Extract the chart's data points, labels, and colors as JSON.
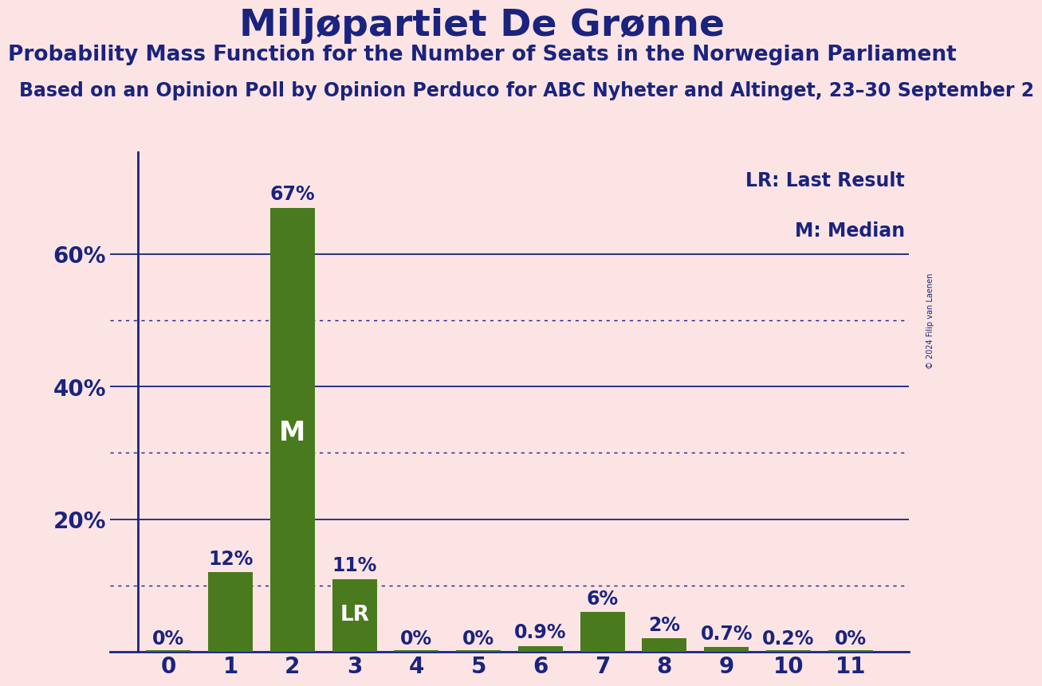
{
  "title": "Miljøpartiet De Grønne",
  "subtitle": "Probability Mass Function for the Number of Seats in the Norwegian Parliament",
  "subtitle2": "Based on an Opinion Poll by Opinion Perduco for ABC Nyheter and Altinget, 23–30 September 2",
  "copyright": "© 2024 Filip van Laenen",
  "categories": [
    0,
    1,
    2,
    3,
    4,
    5,
    6,
    7,
    8,
    9,
    10,
    11
  ],
  "values": [
    0.002,
    0.12,
    0.67,
    0.11,
    0.002,
    0.002,
    0.009,
    0.06,
    0.02,
    0.007,
    0.002,
    0.002
  ],
  "labels": [
    "0%",
    "12%",
    "67%",
    "11%",
    "0%",
    "0%",
    "0.9%",
    "6%",
    "2%",
    "0.7%",
    "0.2%",
    "0%"
  ],
  "bar_color": "#4a7a1e",
  "background_color": "#fce4e4",
  "text_color": "#1a237e",
  "median_bar": 2,
  "lr_bar": 3,
  "legend_lr": "LR: Last Result",
  "legend_m": "M: Median",
  "ylim": [
    0,
    0.755
  ],
  "solid_yticks": [
    0.2,
    0.4,
    0.6
  ],
  "dotted_yticks": [
    0.1,
    0.3,
    0.5
  ],
  "title_fontsize": 34,
  "subtitle_fontsize": 19,
  "subtitle2_fontsize": 17,
  "tick_fontsize": 20,
  "legend_fontsize": 17,
  "bar_label_fontsize": 17,
  "inner_label_m_fontsize": 24,
  "inner_label_lr_fontsize": 19
}
